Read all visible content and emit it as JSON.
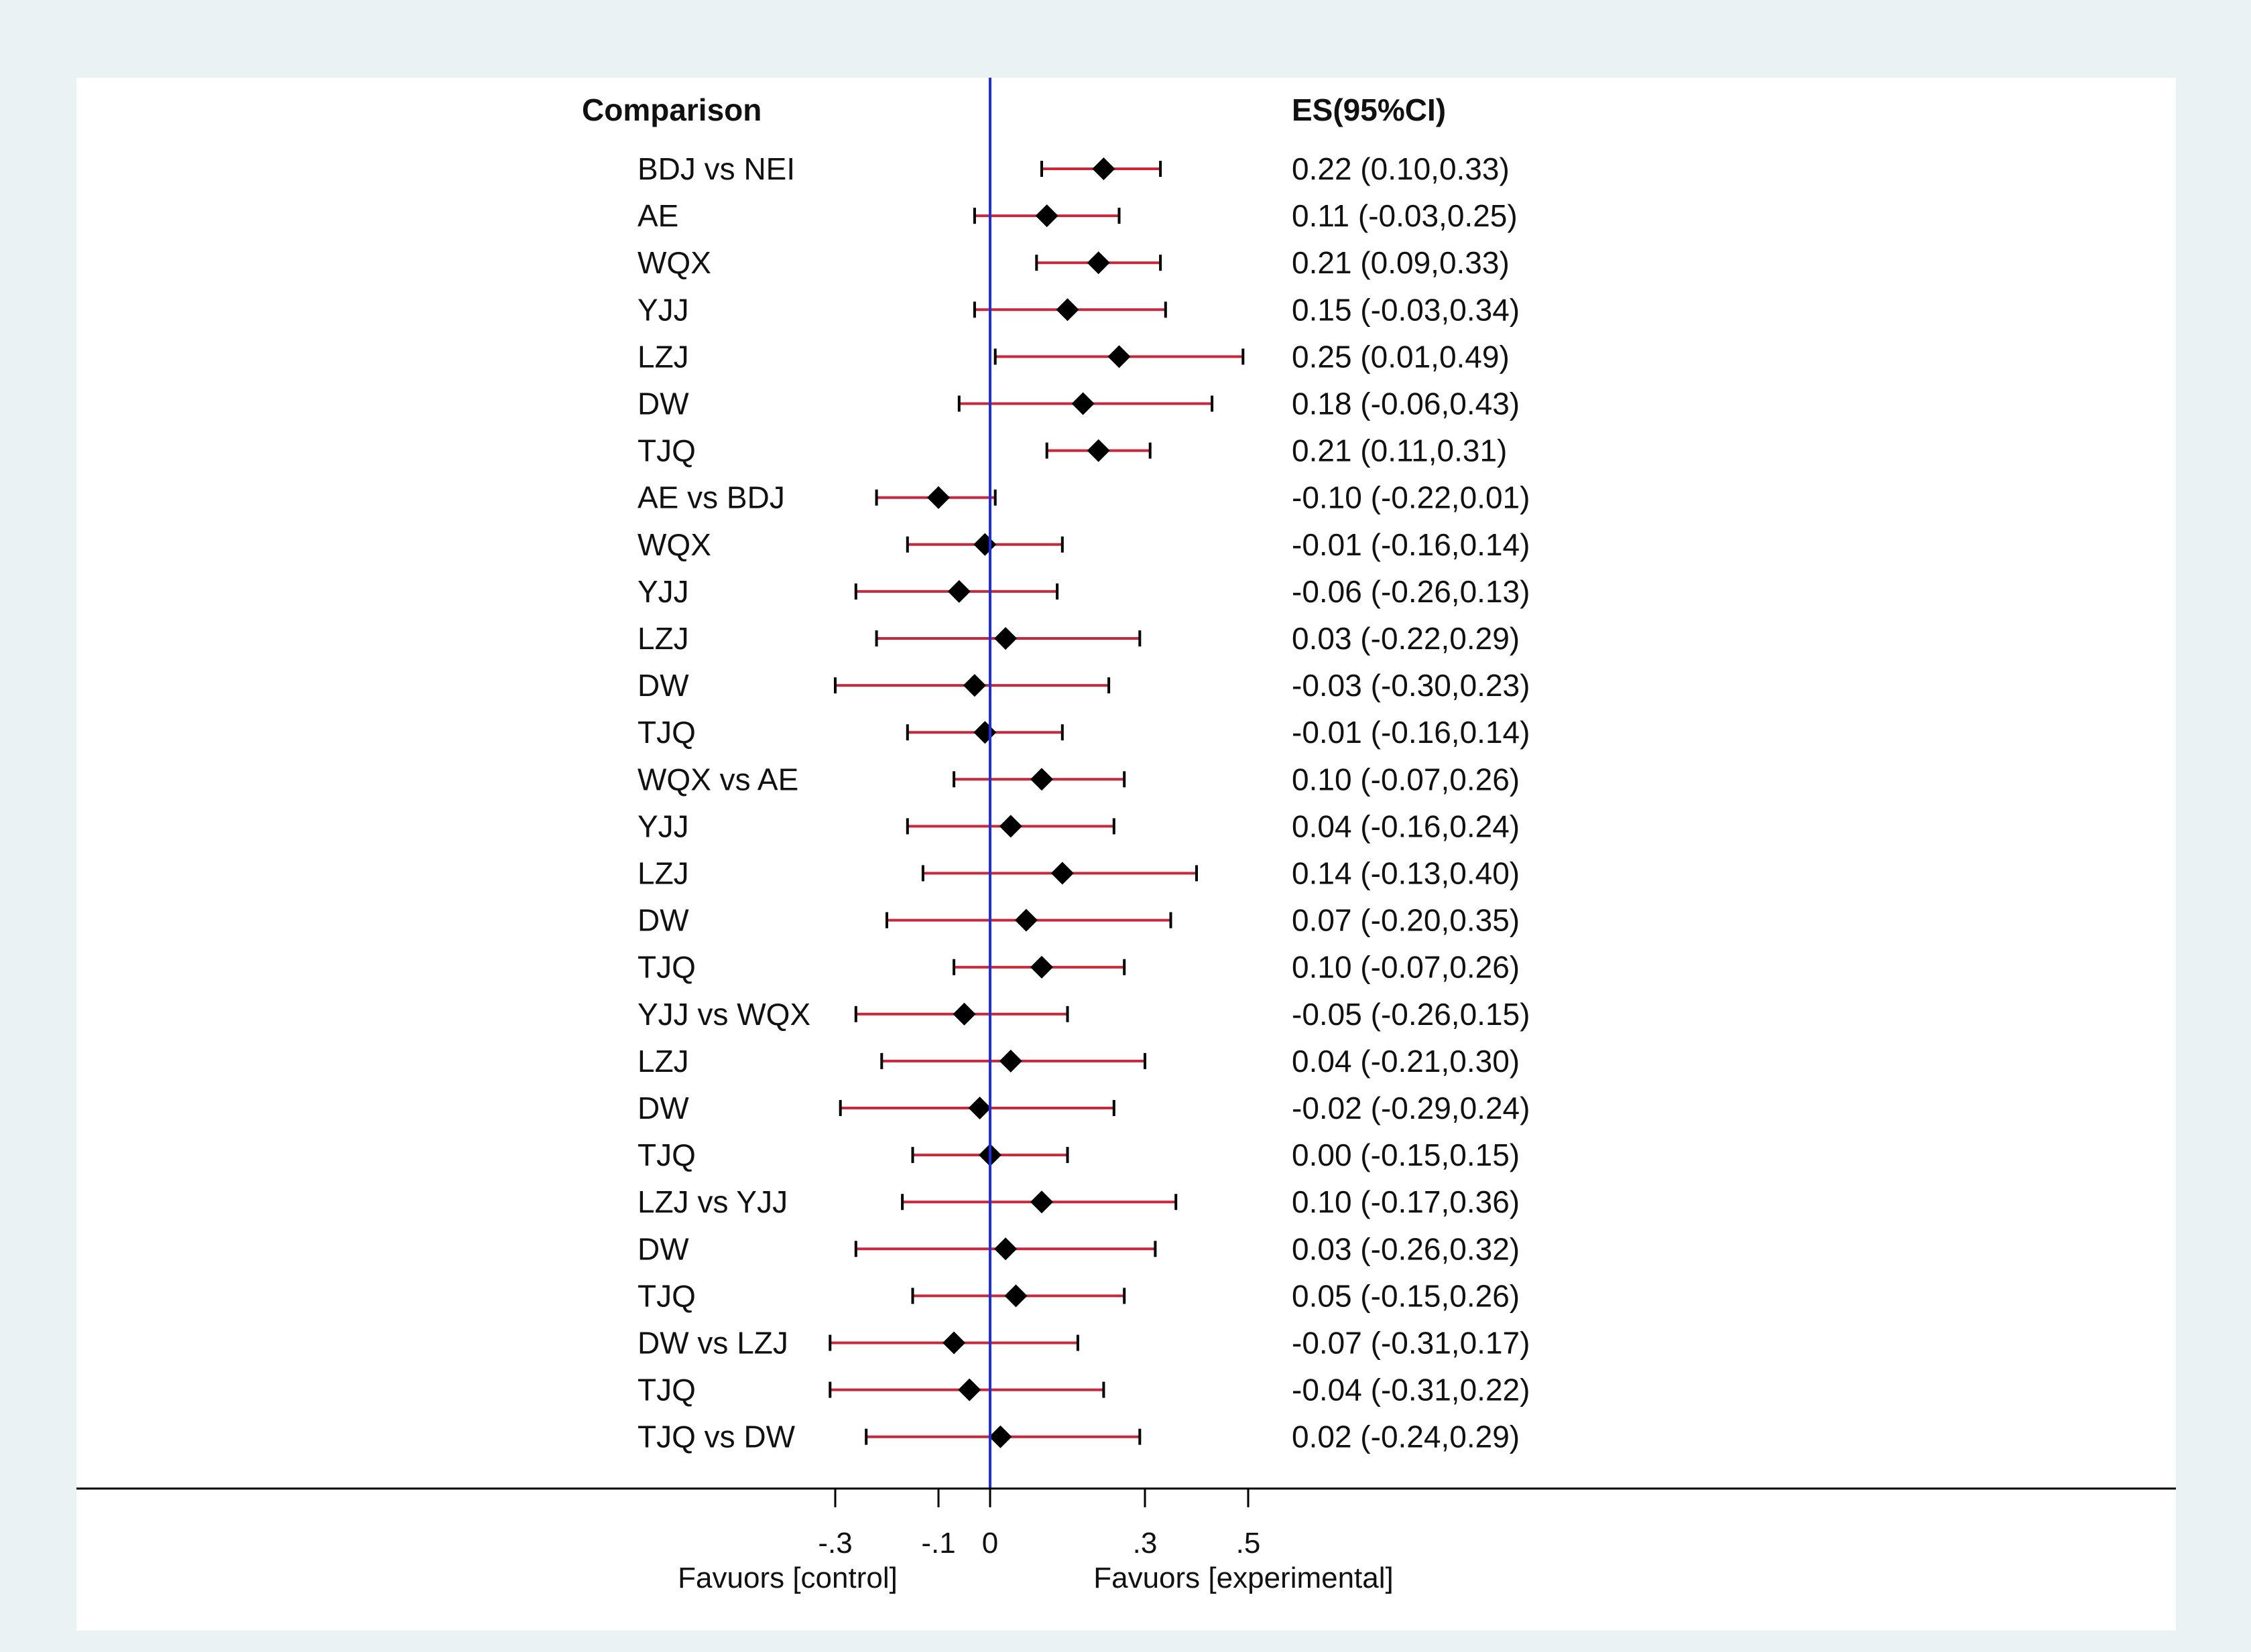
{
  "chart_data": {
    "type": "forest",
    "header": {
      "label_column": "Comparison",
      "value_column": "ES(95%CI)"
    },
    "xlim": [
      -0.3,
      0.5
    ],
    "xticks": [
      {
        "value": -0.3,
        "label": "-.3"
      },
      {
        "value": -0.1,
        "label": "-.1"
      },
      {
        "value": 0,
        "label": "0"
      },
      {
        "value": 0.3,
        "label": ".3"
      },
      {
        "value": 0.5,
        "label": ".5"
      }
    ],
    "favours_left": "Favuors [control]",
    "favours_right": "Favuors [experimental]",
    "rows": [
      {
        "label": "BDJ vs NEI",
        "es": 0.22,
        "lo": 0.1,
        "hi": 0.33,
        "text": "0.22 (0.10,0.33)"
      },
      {
        "label": "AE",
        "es": 0.11,
        "lo": -0.03,
        "hi": 0.25,
        "text": "0.11 (-0.03,0.25)"
      },
      {
        "label": "WQX",
        "es": 0.21,
        "lo": 0.09,
        "hi": 0.33,
        "text": "0.21 (0.09,0.33)"
      },
      {
        "label": "YJJ",
        "es": 0.15,
        "lo": -0.03,
        "hi": 0.34,
        "text": "0.15 (-0.03,0.34)"
      },
      {
        "label": "LZJ",
        "es": 0.25,
        "lo": 0.01,
        "hi": 0.49,
        "text": "0.25 (0.01,0.49)"
      },
      {
        "label": "DW",
        "es": 0.18,
        "lo": -0.06,
        "hi": 0.43,
        "text": "0.18 (-0.06,0.43)"
      },
      {
        "label": "TJQ",
        "es": 0.21,
        "lo": 0.11,
        "hi": 0.31,
        "text": "0.21 (0.11,0.31)"
      },
      {
        "label": "AE vs BDJ",
        "es": -0.1,
        "lo": -0.22,
        "hi": 0.01,
        "text": "-0.10 (-0.22,0.01)"
      },
      {
        "label": "WQX",
        "es": -0.01,
        "lo": -0.16,
        "hi": 0.14,
        "text": "-0.01 (-0.16,0.14)"
      },
      {
        "label": "YJJ",
        "es": -0.06,
        "lo": -0.26,
        "hi": 0.13,
        "text": "-0.06 (-0.26,0.13)"
      },
      {
        "label": "LZJ",
        "es": 0.03,
        "lo": -0.22,
        "hi": 0.29,
        "text": "0.03 (-0.22,0.29)"
      },
      {
        "label": "DW",
        "es": -0.03,
        "lo": -0.3,
        "hi": 0.23,
        "text": "-0.03 (-0.30,0.23)"
      },
      {
        "label": "TJQ",
        "es": -0.01,
        "lo": -0.16,
        "hi": 0.14,
        "text": "-0.01 (-0.16,0.14)"
      },
      {
        "label": "WQX vs AE",
        "es": 0.1,
        "lo": -0.07,
        "hi": 0.26,
        "text": "0.10 (-0.07,0.26)"
      },
      {
        "label": "YJJ",
        "es": 0.04,
        "lo": -0.16,
        "hi": 0.24,
        "text": "0.04 (-0.16,0.24)"
      },
      {
        "label": "LZJ",
        "es": 0.14,
        "lo": -0.13,
        "hi": 0.4,
        "text": "0.14 (-0.13,0.40)"
      },
      {
        "label": "DW",
        "es": 0.07,
        "lo": -0.2,
        "hi": 0.35,
        "text": "0.07 (-0.20,0.35)"
      },
      {
        "label": "TJQ",
        "es": 0.1,
        "lo": -0.07,
        "hi": 0.26,
        "text": "0.10 (-0.07,0.26)"
      },
      {
        "label": "YJJ vs WQX",
        "es": -0.05,
        "lo": -0.26,
        "hi": 0.15,
        "text": "-0.05 (-0.26,0.15)"
      },
      {
        "label": "LZJ",
        "es": 0.04,
        "lo": -0.21,
        "hi": 0.3,
        "text": "0.04 (-0.21,0.30)"
      },
      {
        "label": "DW",
        "es": -0.02,
        "lo": -0.29,
        "hi": 0.24,
        "text": "-0.02 (-0.29,0.24)"
      },
      {
        "label": "TJQ",
        "es": 0.0,
        "lo": -0.15,
        "hi": 0.15,
        "text": "0.00 (-0.15,0.15)"
      },
      {
        "label": "LZJ vs YJJ",
        "es": 0.1,
        "lo": -0.17,
        "hi": 0.36,
        "text": "0.10 (-0.17,0.36)"
      },
      {
        "label": "DW",
        "es": 0.03,
        "lo": -0.26,
        "hi": 0.32,
        "text": "0.03 (-0.26,0.32)"
      },
      {
        "label": "TJQ",
        "es": 0.05,
        "lo": -0.15,
        "hi": 0.26,
        "text": "0.05 (-0.15,0.26)"
      },
      {
        "label": "DW vs LZJ",
        "es": -0.07,
        "lo": -0.31,
        "hi": 0.17,
        "text": "-0.07 (-0.31,0.17)"
      },
      {
        "label": "TJQ",
        "es": -0.04,
        "lo": -0.31,
        "hi": 0.22,
        "text": "-0.04 (-0.31,0.22)"
      },
      {
        "label": "TJQ vs DW",
        "es": 0.02,
        "lo": -0.24,
        "hi": 0.29,
        "text": "0.02 (-0.24,0.29)"
      }
    ],
    "colors": {
      "outer_background": "#eaf2f3",
      "plot_background": "#ffffff",
      "ci_line": "#c8283c",
      "point": "#000000",
      "null_line": "#1f2fe0",
      "text": "#111111"
    }
  }
}
